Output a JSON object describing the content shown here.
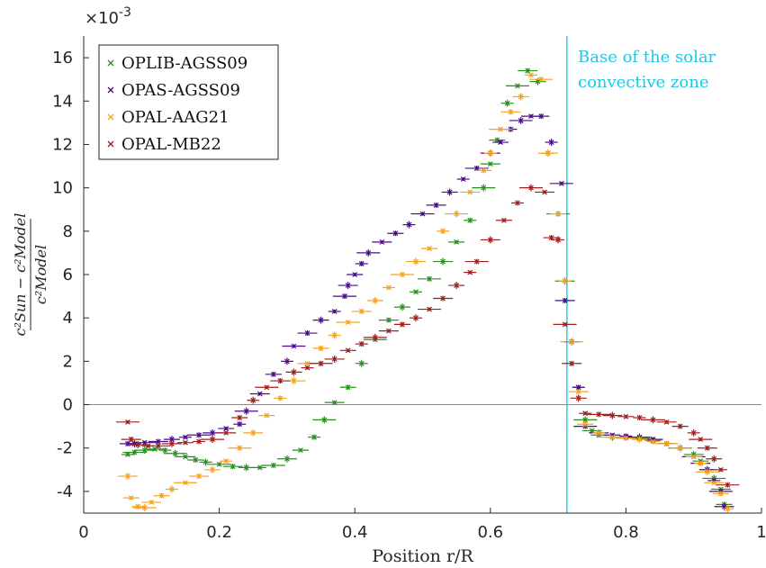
{
  "chart_data": {
    "type": "scatter",
    "xlabel": "Position r/R",
    "ylabel": "(c²Sun − c²Model) / c²Model",
    "ylabel_num": "c²Sun − c²Model",
    "ylabel_den": "c²Model",
    "multiplier": "×10",
    "multiplier_exp": "-3",
    "xlim": [
      0,
      1
    ],
    "ylim": [
      -5,
      17
    ],
    "xticks": [
      "0",
      "0.2",
      "0.4",
      "0.6",
      "0.8",
      "1"
    ],
    "yticks": [
      "-4",
      "-2",
      "0",
      "2",
      "4",
      "6",
      "8",
      "10",
      "12",
      "14",
      "16"
    ],
    "legend_position": "top-left",
    "annotation": {
      "x": 0.713,
      "line1": "Base of the solar",
      "line2": "convective zone"
    },
    "series": [
      {
        "name": "OPLIB-AGSS09",
        "color": "#2a8f1f",
        "points": [
          [
            0.065,
            -2.3
          ],
          [
            0.075,
            -2.2
          ],
          [
            0.09,
            -2.1
          ],
          [
            0.105,
            -2.05
          ],
          [
            0.12,
            -2.1
          ],
          [
            0.135,
            -2.25
          ],
          [
            0.15,
            -2.4
          ],
          [
            0.165,
            -2.55
          ],
          [
            0.18,
            -2.65
          ],
          [
            0.2,
            -2.75
          ],
          [
            0.22,
            -2.85
          ],
          [
            0.24,
            -2.9
          ],
          [
            0.26,
            -2.9
          ],
          [
            0.28,
            -2.8
          ],
          [
            0.3,
            -2.5
          ],
          [
            0.32,
            -2.1
          ],
          [
            0.34,
            -1.5
          ],
          [
            0.355,
            -0.7
          ],
          [
            0.37,
            0.1
          ],
          [
            0.39,
            0.8
          ],
          [
            0.41,
            1.9
          ],
          [
            0.43,
            3.0
          ],
          [
            0.45,
            3.9
          ],
          [
            0.47,
            4.5
          ],
          [
            0.49,
            5.2
          ],
          [
            0.51,
            5.8
          ],
          [
            0.53,
            6.6
          ],
          [
            0.55,
            7.5
          ],
          [
            0.57,
            8.5
          ],
          [
            0.59,
            10.0
          ],
          [
            0.6,
            11.1
          ],
          [
            0.61,
            12.2
          ],
          [
            0.625,
            13.9
          ],
          [
            0.64,
            14.7
          ],
          [
            0.655,
            15.4
          ],
          [
            0.67,
            14.9
          ],
          [
            0.685,
            11.6
          ],
          [
            0.7,
            8.8
          ],
          [
            0.71,
            5.7
          ],
          [
            0.72,
            2.9
          ],
          [
            0.73,
            0.8
          ],
          [
            0.74,
            -0.7
          ],
          [
            0.75,
            -1.2
          ],
          [
            0.76,
            -1.4
          ],
          [
            0.78,
            -1.5
          ],
          [
            0.8,
            -1.5
          ],
          [
            0.82,
            -1.55
          ],
          [
            0.84,
            -1.65
          ],
          [
            0.86,
            -1.8
          ],
          [
            0.88,
            -2.0
          ],
          [
            0.9,
            -2.3
          ],
          [
            0.91,
            -2.6
          ],
          [
            0.92,
            -3.0
          ],
          [
            0.93,
            -3.4
          ],
          [
            0.94,
            -3.9
          ],
          [
            0.945,
            -4.6
          ]
        ]
      },
      {
        "name": "OPAS-AGSS09",
        "color": "#4b0a8c",
        "points": [
          [
            0.065,
            -1.8
          ],
          [
            0.075,
            -1.8
          ],
          [
            0.09,
            -1.75
          ],
          [
            0.11,
            -1.7
          ],
          [
            0.13,
            -1.6
          ],
          [
            0.15,
            -1.5
          ],
          [
            0.17,
            -1.4
          ],
          [
            0.19,
            -1.3
          ],
          [
            0.21,
            -1.1
          ],
          [
            0.23,
            -0.9
          ],
          [
            0.24,
            -0.3
          ],
          [
            0.26,
            0.5
          ],
          [
            0.28,
            1.4
          ],
          [
            0.3,
            2.0
          ],
          [
            0.31,
            2.7
          ],
          [
            0.33,
            3.3
          ],
          [
            0.35,
            3.9
          ],
          [
            0.37,
            4.3
          ],
          [
            0.385,
            5.0
          ],
          [
            0.39,
            5.5
          ],
          [
            0.4,
            6.0
          ],
          [
            0.41,
            6.5
          ],
          [
            0.42,
            7.0
          ],
          [
            0.44,
            7.5
          ],
          [
            0.46,
            7.9
          ],
          [
            0.48,
            8.3
          ],
          [
            0.5,
            8.8
          ],
          [
            0.52,
            9.2
          ],
          [
            0.54,
            9.8
          ],
          [
            0.56,
            10.4
          ],
          [
            0.58,
            10.9
          ],
          [
            0.6,
            11.6
          ],
          [
            0.615,
            12.1
          ],
          [
            0.63,
            12.7
          ],
          [
            0.645,
            13.1
          ],
          [
            0.66,
            13.3
          ],
          [
            0.675,
            13.3
          ],
          [
            0.69,
            12.1
          ],
          [
            0.705,
            10.2
          ],
          [
            0.71,
            4.8
          ],
          [
            0.72,
            2.9
          ],
          [
            0.73,
            0.8
          ],
          [
            0.74,
            -1.0
          ],
          [
            0.76,
            -1.3
          ],
          [
            0.78,
            -1.4
          ],
          [
            0.8,
            -1.45
          ],
          [
            0.82,
            -1.5
          ],
          [
            0.84,
            -1.6
          ],
          [
            0.86,
            -1.8
          ],
          [
            0.88,
            -2.0
          ],
          [
            0.9,
            -2.4
          ],
          [
            0.91,
            -2.7
          ],
          [
            0.92,
            -3.0
          ],
          [
            0.93,
            -3.5
          ],
          [
            0.94,
            -4.0
          ],
          [
            0.945,
            -4.7
          ]
        ]
      },
      {
        "name": "OPAL-AAG21",
        "color": "#f7a21b",
        "points": [
          [
            0.065,
            -3.3
          ],
          [
            0.07,
            -4.3
          ],
          [
            0.08,
            -4.7
          ],
          [
            0.09,
            -4.75
          ],
          [
            0.1,
            -4.5
          ],
          [
            0.115,
            -4.2
          ],
          [
            0.13,
            -3.9
          ],
          [
            0.15,
            -3.6
          ],
          [
            0.17,
            -3.3
          ],
          [
            0.19,
            -3.0
          ],
          [
            0.21,
            -2.6
          ],
          [
            0.23,
            -2.0
          ],
          [
            0.25,
            -1.3
          ],
          [
            0.27,
            -0.5
          ],
          [
            0.29,
            0.3
          ],
          [
            0.31,
            1.1
          ],
          [
            0.33,
            1.9
          ],
          [
            0.35,
            2.6
          ],
          [
            0.37,
            3.2
          ],
          [
            0.39,
            3.8
          ],
          [
            0.41,
            4.3
          ],
          [
            0.43,
            4.8
          ],
          [
            0.45,
            5.4
          ],
          [
            0.47,
            6.0
          ],
          [
            0.49,
            6.6
          ],
          [
            0.51,
            7.2
          ],
          [
            0.53,
            8.0
          ],
          [
            0.55,
            8.8
          ],
          [
            0.57,
            9.8
          ],
          [
            0.59,
            10.8
          ],
          [
            0.6,
            11.6
          ],
          [
            0.615,
            12.7
          ],
          [
            0.63,
            13.5
          ],
          [
            0.645,
            14.2
          ],
          [
            0.66,
            15.2
          ],
          [
            0.675,
            15.0
          ],
          [
            0.685,
            11.6
          ],
          [
            0.7,
            8.8
          ],
          [
            0.71,
            5.7
          ],
          [
            0.72,
            2.9
          ],
          [
            0.73,
            0.6
          ],
          [
            0.74,
            -0.9
          ],
          [
            0.76,
            -1.3
          ],
          [
            0.78,
            -1.5
          ],
          [
            0.8,
            -1.55
          ],
          [
            0.82,
            -1.6
          ],
          [
            0.84,
            -1.7
          ],
          [
            0.86,
            -1.8
          ],
          [
            0.88,
            -2.0
          ],
          [
            0.9,
            -2.4
          ],
          [
            0.91,
            -2.7
          ],
          [
            0.92,
            -3.1
          ],
          [
            0.93,
            -3.6
          ],
          [
            0.94,
            -4.1
          ],
          [
            0.95,
            -4.8
          ]
        ]
      },
      {
        "name": "OPAL-MB22",
        "color": "#9e1f1f",
        "points": [
          [
            0.065,
            -0.8
          ],
          [
            0.07,
            -1.6
          ],
          [
            0.08,
            -1.85
          ],
          [
            0.095,
            -1.9
          ],
          [
            0.11,
            -1.9
          ],
          [
            0.13,
            -1.8
          ],
          [
            0.15,
            -1.75
          ],
          [
            0.17,
            -1.7
          ],
          [
            0.19,
            -1.6
          ],
          [
            0.21,
            -1.3
          ],
          [
            0.23,
            -0.6
          ],
          [
            0.25,
            0.2
          ],
          [
            0.27,
            0.8
          ],
          [
            0.29,
            1.1
          ],
          [
            0.31,
            1.5
          ],
          [
            0.33,
            1.7
          ],
          [
            0.35,
            1.9
          ],
          [
            0.37,
            2.1
          ],
          [
            0.39,
            2.5
          ],
          [
            0.41,
            2.8
          ],
          [
            0.43,
            3.1
          ],
          [
            0.45,
            3.4
          ],
          [
            0.47,
            3.7
          ],
          [
            0.49,
            4.0
          ],
          [
            0.51,
            4.4
          ],
          [
            0.53,
            4.9
          ],
          [
            0.55,
            5.5
          ],
          [
            0.57,
            6.1
          ],
          [
            0.58,
            6.6
          ],
          [
            0.6,
            7.6
          ],
          [
            0.62,
            8.5
          ],
          [
            0.64,
            9.3
          ],
          [
            0.66,
            10.0
          ],
          [
            0.68,
            9.8
          ],
          [
            0.69,
            7.7
          ],
          [
            0.7,
            7.6
          ],
          [
            0.71,
            3.7
          ],
          [
            0.72,
            1.9
          ],
          [
            0.73,
            0.3
          ],
          [
            0.74,
            -0.4
          ],
          [
            0.76,
            -0.45
          ],
          [
            0.78,
            -0.5
          ],
          [
            0.8,
            -0.55
          ],
          [
            0.82,
            -0.6
          ],
          [
            0.84,
            -0.7
          ],
          [
            0.86,
            -0.8
          ],
          [
            0.88,
            -1.0
          ],
          [
            0.9,
            -1.3
          ],
          [
            0.91,
            -1.6
          ],
          [
            0.92,
            -2.0
          ],
          [
            0.93,
            -2.5
          ],
          [
            0.94,
            -3.0
          ],
          [
            0.95,
            -3.7
          ]
        ]
      }
    ]
  }
}
